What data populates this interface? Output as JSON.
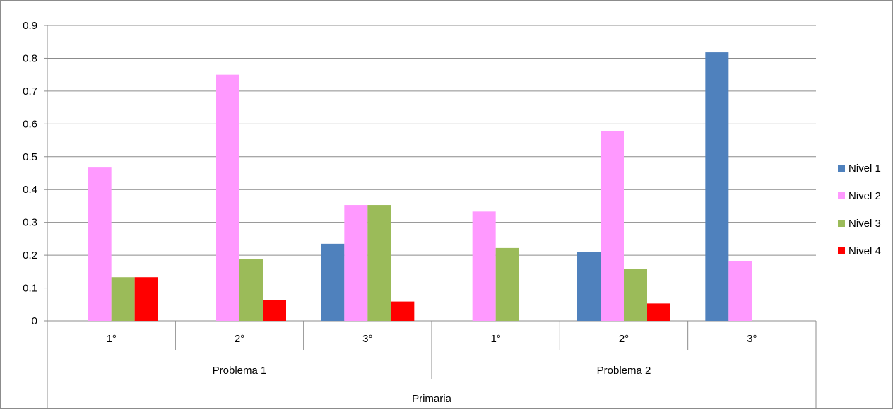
{
  "chart_data": {
    "type": "bar",
    "title": "",
    "xlabel": "",
    "ylabel": "",
    "ylim": [
      0,
      0.9
    ],
    "ytick_step": 0.1,
    "grid": true,
    "legend_position": "right",
    "categories": [
      "1°",
      "2°",
      "3°",
      "1°",
      "2°",
      "3°"
    ],
    "groups": [
      {
        "label": "Problema 1",
        "span": 3
      },
      {
        "label": "Problema 2",
        "span": 3
      }
    ],
    "supergroup": "Primaria",
    "series": [
      {
        "name": "Nivel 1",
        "color": "#4F81BD",
        "values": [
          0,
          0,
          0.235,
          0,
          0.21,
          0.818
        ]
      },
      {
        "name": "Nivel 2",
        "color": "#FF99FF",
        "values": [
          0.467,
          0.75,
          0.353,
          0.333,
          0.579,
          0.182
        ]
      },
      {
        "name": "Nivel 3",
        "color": "#9BBB59",
        "values": [
          0.133,
          0.188,
          0.353,
          0.222,
          0.158,
          0
        ]
      },
      {
        "name": "Nivel 4",
        "color": "#FF0000",
        "values": [
          0.133,
          0.063,
          0.059,
          0,
          0.053,
          0
        ]
      }
    ]
  }
}
